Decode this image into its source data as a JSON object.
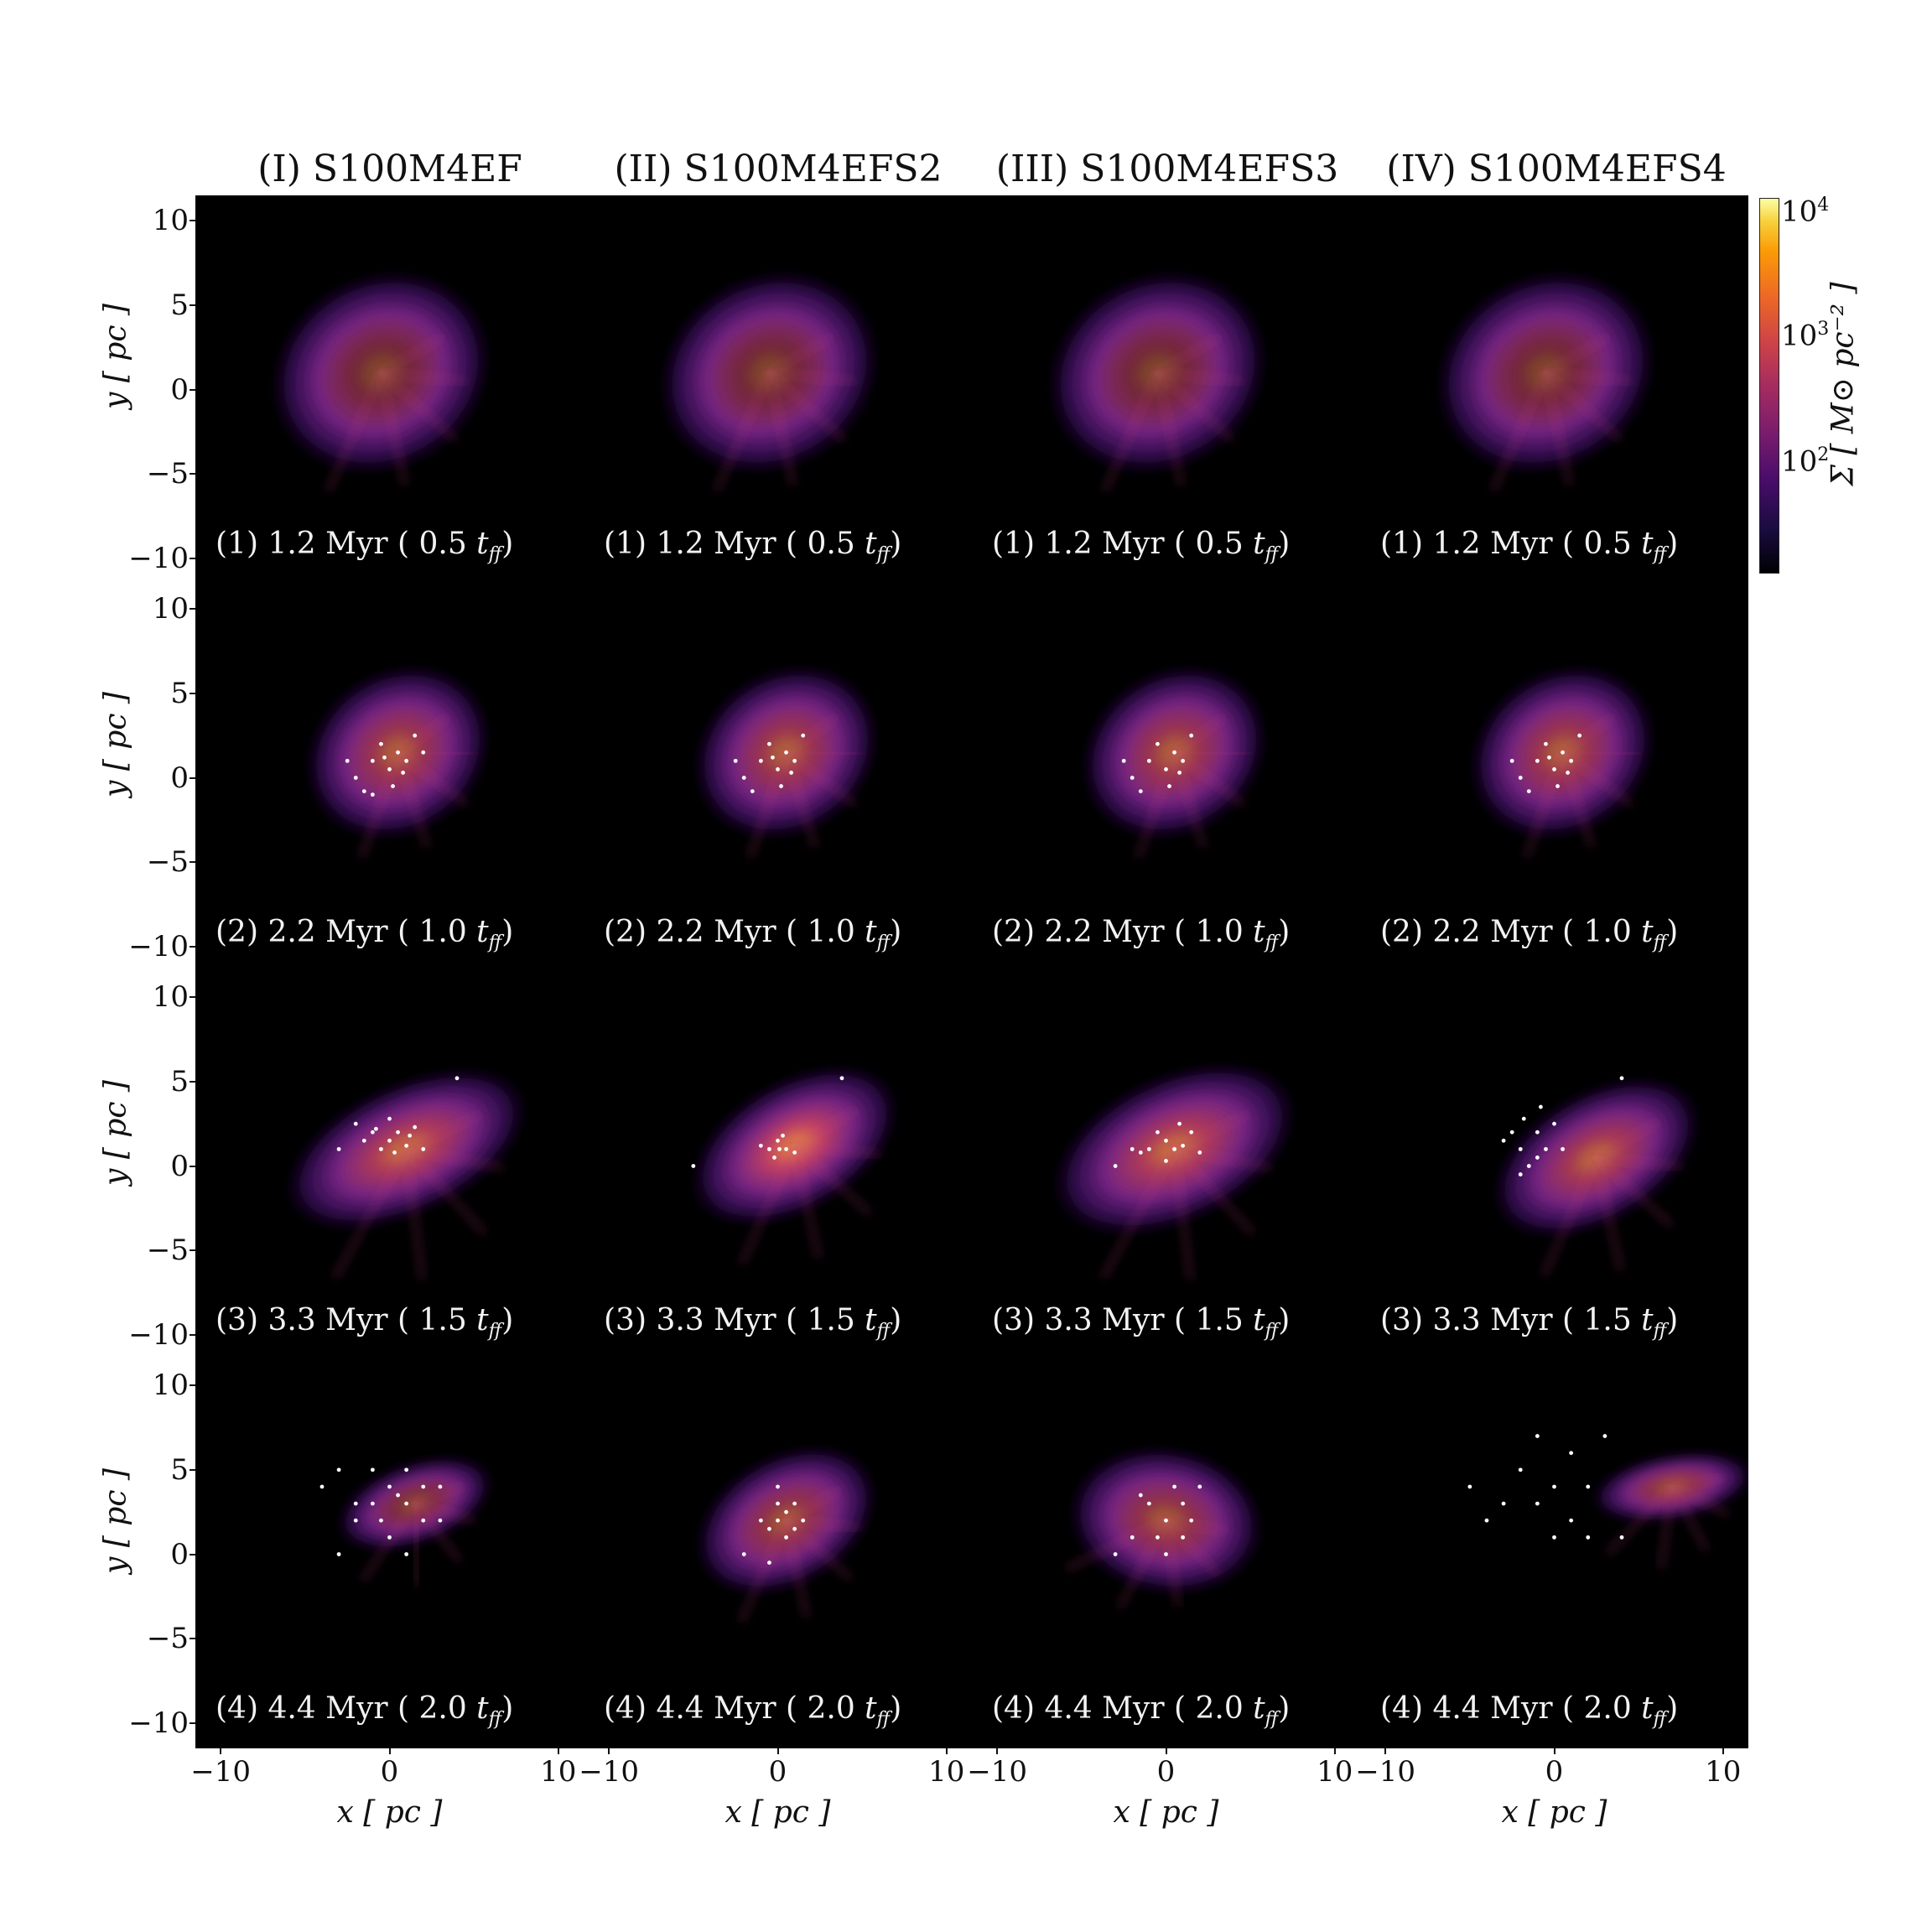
{
  "figure": {
    "columns": [
      {
        "title": "(I) S100M4EF"
      },
      {
        "title": "(II) S100M4EFS2"
      },
      {
        "title": "(III) S100M4EFS3"
      },
      {
        "title": "(IV) S100M4EFS4"
      }
    ],
    "rows": [
      {
        "label": "(1) 1.2 Myr ( 0.5 ",
        "tff": "t",
        "sub": "ff",
        "close": ")"
      },
      {
        "label": "(2) 2.2 Myr ( 1.0 ",
        "tff": "t",
        "sub": "ff",
        "close": ")"
      },
      {
        "label": "(3) 3.3 Myr ( 1.5 ",
        "tff": "t",
        "sub": "ff",
        "close": ")"
      },
      {
        "label": "(4) 4.4 Myr ( 2.0 ",
        "tff": "t",
        "sub": "ff",
        "close": ")"
      }
    ],
    "ylabel": "y [ pc ]",
    "xlabel": "x [ pc ]",
    "yticks": [
      "10",
      "5",
      "0",
      "−5",
      "−10"
    ],
    "xticks": [
      "−10",
      "0",
      "10"
    ],
    "colorbar": {
      "label": "Σ [ M⊙ pc⁻² ]",
      "ticks": [
        {
          "base": "10",
          "exp": "4"
        },
        {
          "base": "10",
          "exp": "3"
        },
        {
          "base": "10",
          "exp": "2"
        }
      ],
      "colormap": "inferno",
      "scale": "log",
      "range": [
        30,
        10000
      ]
    }
  },
  "chart_data": {
    "type": "heatmap",
    "quantity": "surface density Σ [M⊙ pc⁻²]",
    "xlim": [
      -11.5,
      11.5
    ],
    "ylim": [
      -11.5,
      11.5
    ],
    "columns": [
      "(I) S100M4EF",
      "(II) S100M4EFS2",
      "(III) S100M4EFS3",
      "(IV) S100M4EFS4"
    ],
    "rows": [
      "(1) 1.2 Myr ( 0.5 tff)",
      "(2) 2.2 Myr ( 1.0 tff)",
      "(3) 3.3 Myr ( 1.5 tff)",
      "(4) 4.4 Myr ( 2.0 tff)"
    ],
    "clouds": [
      [
        {
          "cx": -0.5,
          "cy": 1.0,
          "w": 7,
          "h": 6,
          "rot": -30,
          "peak": 0.55,
          "stars": []
        },
        {
          "cx": -0.5,
          "cy": 1.0,
          "w": 7,
          "h": 6,
          "rot": -30,
          "peak": 0.55,
          "stars": []
        },
        {
          "cx": -0.5,
          "cy": 1.0,
          "w": 7,
          "h": 6,
          "rot": -30,
          "peak": 0.55,
          "stars": []
        },
        {
          "cx": -0.5,
          "cy": 1.0,
          "w": 7,
          "h": 6,
          "rot": -30,
          "peak": 0.55,
          "stars": []
        }
      ],
      [
        {
          "cx": 0.5,
          "cy": 1.5,
          "w": 6,
          "h": 5,
          "rot": -35,
          "peak": 0.75,
          "stars": [
            [
              -1,
              1
            ],
            [
              0,
              0.5
            ],
            [
              0.5,
              1.5
            ],
            [
              -2,
              0
            ],
            [
              -1.5,
              -0.8
            ],
            [
              0.8,
              0.3
            ],
            [
              -0.5,
              2
            ],
            [
              1.5,
              2.5
            ],
            [
              0.2,
              -0.5
            ],
            [
              -2.5,
              1
            ],
            [
              1,
              1
            ],
            [
              -0.3,
              1.2
            ],
            [
              2,
              1.5
            ],
            [
              -1,
              -1
            ]
          ]
        },
        {
          "cx": 0.5,
          "cy": 1.5,
          "w": 6,
          "h": 5,
          "rot": -35,
          "peak": 0.75,
          "stars": [
            [
              -1,
              1
            ],
            [
              0,
              0.5
            ],
            [
              0.5,
              1.5
            ],
            [
              -2,
              0
            ],
            [
              -1.5,
              -0.8
            ],
            [
              0.8,
              0.3
            ],
            [
              -0.5,
              2
            ],
            [
              1.5,
              2.5
            ],
            [
              0.2,
              -0.5
            ],
            [
              -2.5,
              1
            ],
            [
              1,
              1
            ],
            [
              -0.3,
              1.2
            ]
          ]
        },
        {
          "cx": 0.5,
          "cy": 1.5,
          "w": 6,
          "h": 5,
          "rot": -35,
          "peak": 0.75,
          "stars": [
            [
              -1,
              1
            ],
            [
              0,
              0.5
            ],
            [
              0.5,
              1.5
            ],
            [
              -2,
              0
            ],
            [
              -1.5,
              -0.8
            ],
            [
              0.8,
              0.3
            ],
            [
              -0.5,
              2
            ],
            [
              1.5,
              2.5
            ],
            [
              0.2,
              -0.5
            ],
            [
              -2.5,
              1
            ],
            [
              1,
              1
            ]
          ]
        },
        {
          "cx": 0.5,
          "cy": 1.5,
          "w": 6,
          "h": 5,
          "rot": -35,
          "peak": 0.75,
          "stars": [
            [
              -1,
              1
            ],
            [
              0,
              0.5
            ],
            [
              0.5,
              1.5
            ],
            [
              -2,
              0
            ],
            [
              -1.5,
              -0.8
            ],
            [
              0.8,
              0.3
            ],
            [
              -0.5,
              2
            ],
            [
              1.5,
              2.5
            ],
            [
              0.2,
              -0.5
            ],
            [
              -2.5,
              1
            ],
            [
              1,
              1
            ],
            [
              -0.3,
              1.2
            ]
          ]
        }
      ],
      [
        {
          "cx": 1.0,
          "cy": 1.0,
          "w": 8,
          "h": 4,
          "rot": -25,
          "peak": 0.85,
          "stars": [
            [
              -1,
              2
            ],
            [
              0,
              1.5
            ],
            [
              0.5,
              2
            ],
            [
              -0.5,
              1
            ],
            [
              1,
              1.2
            ],
            [
              -1.5,
              1.5
            ],
            [
              1.5,
              2.3
            ],
            [
              0,
              2.8
            ],
            [
              -2,
              2.5
            ],
            [
              2,
              1
            ],
            [
              0.3,
              0.8
            ],
            [
              -0.8,
              2.2
            ],
            [
              4,
              5.2
            ],
            [
              -3,
              1
            ],
            [
              1.2,
              1.8
            ]
          ]
        },
        {
          "cx": 1.0,
          "cy": 1.2,
          "w": 7,
          "h": 4,
          "rot": -30,
          "peak": 0.95,
          "stars": [
            [
              -0.5,
              1
            ],
            [
              0,
              1.5
            ],
            [
              0.5,
              1
            ],
            [
              -0.2,
              0.5
            ],
            [
              0.3,
              1.8
            ],
            [
              -1,
              1.2
            ],
            [
              1,
              0.8
            ],
            [
              0.1,
              1
            ],
            [
              3.8,
              5.2
            ],
            [
              -5,
              0
            ]
          ]
        },
        {
          "cx": 0.5,
          "cy": 1.0,
          "w": 8,
          "h": 4.5,
          "rot": -25,
          "peak": 0.85,
          "stars": [
            [
              -1,
              1
            ],
            [
              0,
              1.5
            ],
            [
              0.5,
              1
            ],
            [
              -0.5,
              2
            ],
            [
              1,
              1.2
            ],
            [
              -1.5,
              0.8
            ],
            [
              1.5,
              2
            ],
            [
              0,
              0.3
            ],
            [
              -2,
              1
            ],
            [
              2,
              0.8
            ],
            [
              -3,
              0
            ],
            [
              0.8,
              2.5
            ]
          ]
        },
        {
          "cx": 2.5,
          "cy": 0.5,
          "w": 7,
          "h": 4,
          "rot": -30,
          "peak": 0.8,
          "stars": [
            [
              -2,
              1
            ],
            [
              -1,
              2
            ],
            [
              -1.5,
              0
            ],
            [
              -2.5,
              2
            ],
            [
              -0.5,
              1
            ],
            [
              0,
              2.5
            ],
            [
              -3,
              1.5
            ],
            [
              -1,
              0.5
            ],
            [
              -2,
              -0.5
            ],
            [
              0.5,
              1
            ],
            [
              -1.8,
              2.8
            ],
            [
              -0.8,
              3.5
            ],
            [
              4,
              5.2
            ]
          ]
        }
      ],
      [
        {
          "cx": 1.5,
          "cy": 3.0,
          "w": 5,
          "h": 2.5,
          "rot": -20,
          "peak": 0.6,
          "stars": [
            [
              -1,
              3
            ],
            [
              0,
              4
            ],
            [
              1,
              3
            ],
            [
              -2,
              2
            ],
            [
              2,
              4
            ],
            [
              -3,
              5
            ],
            [
              3,
              2
            ],
            [
              0,
              1
            ],
            [
              1,
              5
            ],
            [
              -1,
              5
            ],
            [
              2,
              2
            ],
            [
              -2,
              3
            ],
            [
              0.5,
              3.5
            ],
            [
              -0.5,
              2
            ],
            [
              -3,
              0
            ],
            [
              1,
              0
            ],
            [
              3,
              4
            ],
            [
              -4,
              4
            ]
          ]
        },
        {
          "cx": 0.5,
          "cy": 2.0,
          "w": 6,
          "h": 4,
          "rot": -30,
          "peak": 0.7,
          "stars": [
            [
              0,
              2
            ],
            [
              0.5,
              2.5
            ],
            [
              -0.5,
              1.5
            ],
            [
              1,
              3
            ],
            [
              0,
              3
            ],
            [
              -1,
              2
            ],
            [
              0.5,
              1
            ],
            [
              -2,
              0
            ],
            [
              1.5,
              2
            ],
            [
              0,
              4
            ],
            [
              -0.5,
              -0.5
            ],
            [
              1,
              1.5
            ]
          ]
        },
        {
          "cx": 0.0,
          "cy": 2.0,
          "w": 6,
          "h": 4.5,
          "rot": 10,
          "peak": 0.7,
          "stars": [
            [
              -1,
              3
            ],
            [
              0,
              2
            ],
            [
              1,
              3
            ],
            [
              -2,
              1
            ],
            [
              0.5,
              4
            ],
            [
              -0.5,
              1
            ],
            [
              1.5,
              2
            ],
            [
              -1.5,
              3.5
            ],
            [
              2,
              4
            ],
            [
              0,
              0
            ],
            [
              -3,
              0
            ],
            [
              1,
              1
            ]
          ]
        },
        {
          "cx": 7.0,
          "cy": 4.0,
          "w": 5,
          "h": 2,
          "rot": -10,
          "peak": 0.7,
          "stars": [
            [
              0,
              4
            ],
            [
              -2,
              5
            ],
            [
              2,
              4
            ],
            [
              -3,
              3
            ],
            [
              1,
              6
            ],
            [
              -1,
              7
            ],
            [
              3,
              7
            ],
            [
              0,
              1
            ],
            [
              -4,
              2
            ],
            [
              2,
              1
            ],
            [
              -1,
              3
            ],
            [
              1,
              2
            ],
            [
              -5,
              4
            ],
            [
              4,
              1
            ]
          ]
        }
      ]
    ]
  }
}
